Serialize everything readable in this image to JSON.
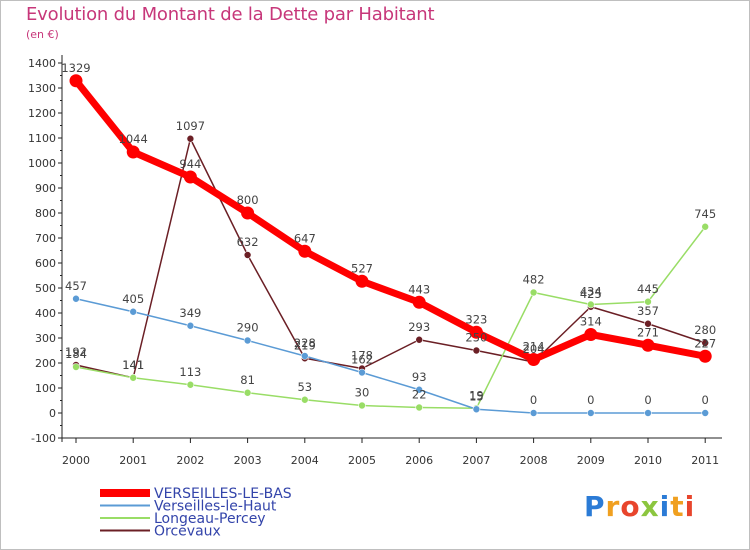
{
  "title": "Evolution du Montant de la Dette par Habitant",
  "subtitle": "(en €)",
  "logo": "Proxiti",
  "chart_data": {
    "type": "line",
    "title": "Evolution du Montant de la Dette par Habitant",
    "subtitle": "(en €)",
    "x": [
      "2000",
      "2001",
      "2002",
      "2003",
      "2004",
      "2005",
      "2006",
      "2007",
      "2008",
      "2009",
      "2010",
      "2011"
    ],
    "ylim": [
      -100,
      1400
    ],
    "yticks": [
      "-100",
      "0",
      "100",
      "200",
      "300",
      "400",
      "500",
      "600",
      "700",
      "800",
      "900",
      "1000",
      "1100",
      "1200",
      "1300",
      "1400"
    ],
    "grid": false,
    "legend": "bottom-left",
    "series": [
      {
        "name": "VERSEILLES-LE-BAS",
        "color": "#ff0000",
        "values": [
          1329,
          1044,
          944,
          800,
          647,
          527,
          443,
          323,
          214,
          314,
          271,
          227
        ]
      },
      {
        "name": "Verseilles-le-Haut",
        "color": "#5b9bd5",
        "values": [
          457,
          405,
          349,
          290,
          228,
          162,
          93,
          15,
          0,
          0,
          0,
          0
        ]
      },
      {
        "name": "Longeau-Percey",
        "color": "#99dd66",
        "values": [
          184,
          141,
          113,
          81,
          53,
          30,
          22,
          19,
          482,
          434,
          445,
          745
        ]
      },
      {
        "name": "Orcevaux",
        "color": "#6b1f25",
        "values": [
          192,
          141,
          1097,
          632,
          219,
          178,
          293,
          250,
          204,
          425,
          357,
          280
        ]
      }
    ]
  }
}
